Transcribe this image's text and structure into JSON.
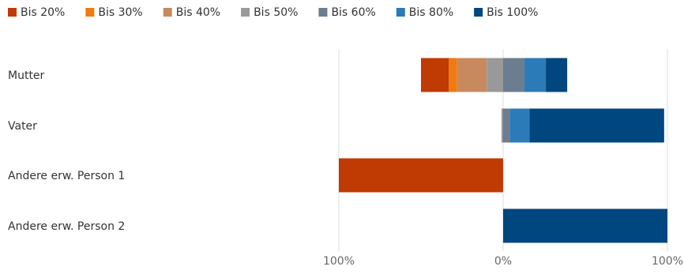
{
  "chart_data": {
    "type": "bar",
    "orientation": "horizontal",
    "stacked": "diverging",
    "categories": [
      "Mutter",
      "Vater",
      "Andere erw. Person 1",
      "Andere erw. Person 2"
    ],
    "xlim": [
      -100,
      100
    ],
    "x_tick_labels": [
      "100%",
      "0%",
      "100%"
    ],
    "x_tick_values": [
      -100,
      0,
      100
    ],
    "grid": "vertical",
    "legend": "top-left",
    "series": [
      {
        "name": "Bis 20%",
        "color": "#c03a04",
        "values": [
          -17,
          0,
          -100,
          0
        ]
      },
      {
        "name": "Bis 30%",
        "color": "#f07a10",
        "values": [
          -5,
          0,
          0,
          0
        ]
      },
      {
        "name": "Bis 40%",
        "color": "#c8895f",
        "values": [
          -18,
          0,
          0,
          0
        ]
      },
      {
        "name": "Bis 50%",
        "color": "#999999",
        "values": [
          -10,
          -1,
          0,
          0
        ]
      },
      {
        "name": "Bis 60%",
        "color": "#6c7d90",
        "values": [
          13,
          4,
          0,
          0
        ]
      },
      {
        "name": "Bis 80%",
        "color": "#2b7bb9",
        "values": [
          13,
          12,
          0,
          0
        ]
      },
      {
        "name": "Bis 100%",
        "color": "#00467f",
        "values": [
          13,
          82,
          0,
          100
        ]
      }
    ]
  }
}
